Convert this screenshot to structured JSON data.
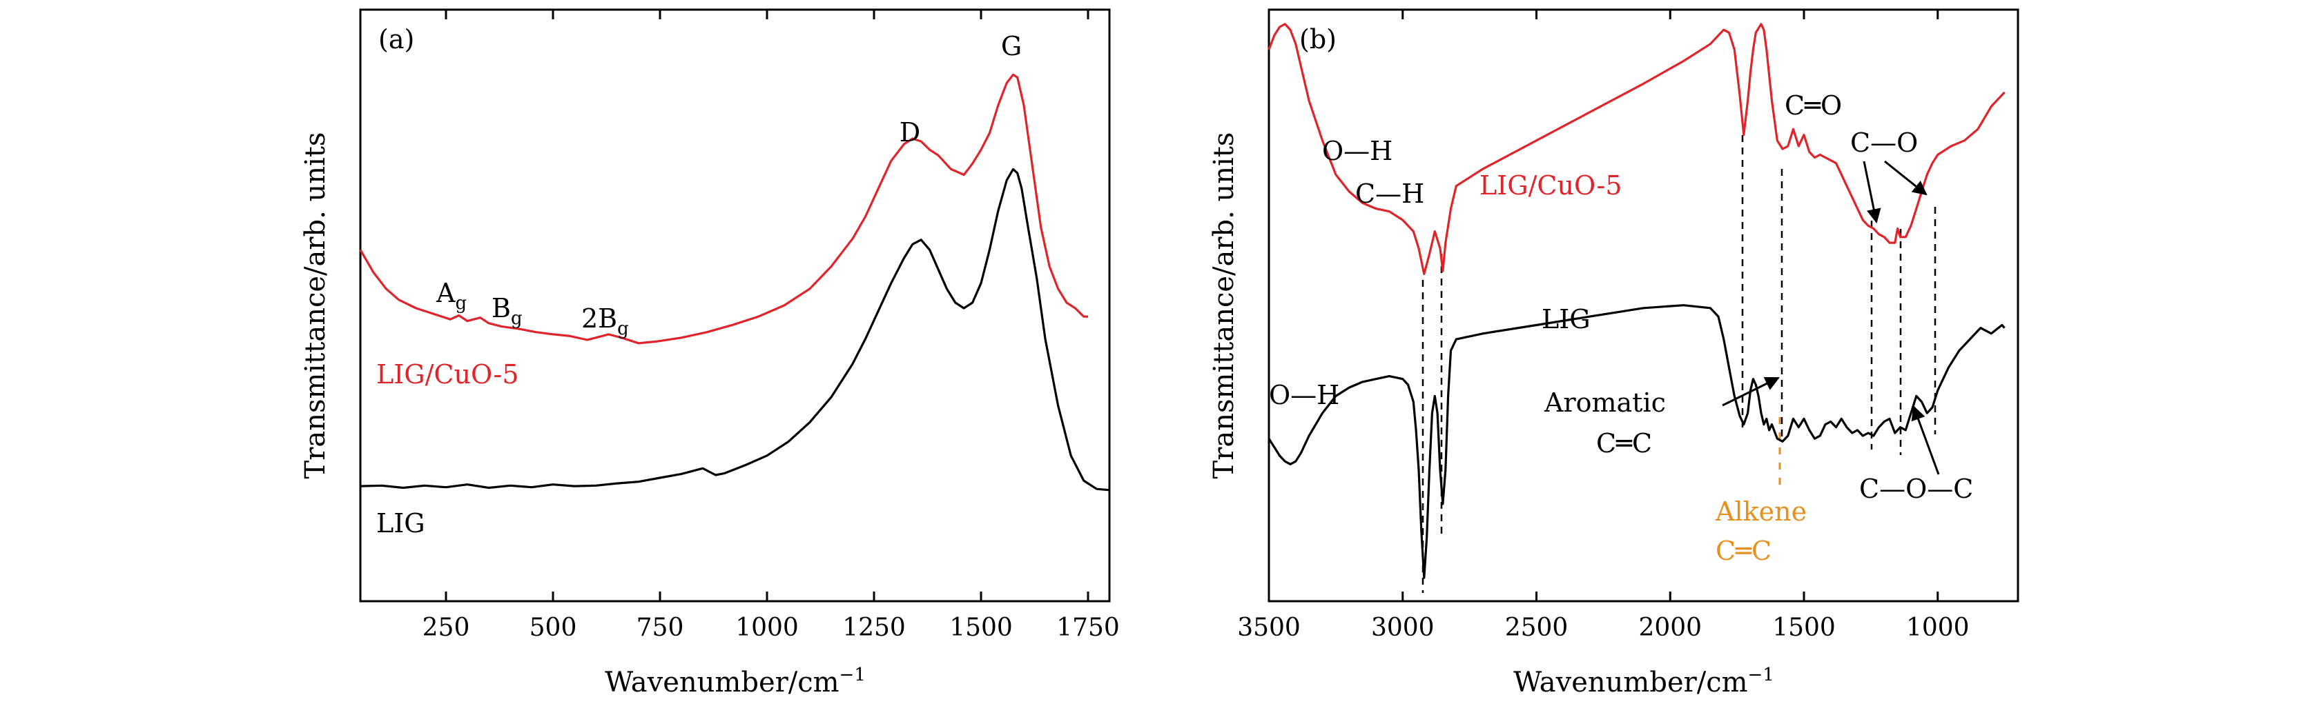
{
  "colors": {
    "red": "#e0242a",
    "black": "#000000",
    "orange": "#e8901c"
  },
  "chart_data": [
    {
      "type": "line",
      "panel": "(a)",
      "xlabel": "Wavenumber/cm",
      "xlabel_sup": "−1",
      "ylabel": "Transmittance/arb. units",
      "xlim": [
        50,
        1800
      ],
      "ylim": [
        0,
        1
      ],
      "xticks": [
        250,
        500,
        750,
        1000,
        1250,
        1500,
        1750
      ],
      "xtick_labels": [
        "250",
        "500",
        "750",
        "1000",
        "1250",
        "1500",
        "1750"
      ],
      "series": [
        {
          "name": "LIG/CuO-5",
          "color": "#e0242a",
          "x": [
            50,
            80,
            110,
            140,
            180,
            220,
            260,
            280,
            300,
            330,
            350,
            380,
            420,
            460,
            500,
            540,
            580,
            600,
            630,
            660,
            700,
            740,
            800,
            860,
            920,
            980,
            1040,
            1100,
            1150,
            1200,
            1230,
            1260,
            1290,
            1320,
            1340,
            1360,
            1380,
            1400,
            1430,
            1460,
            1480,
            1500,
            1520,
            1540,
            1560,
            1575,
            1585,
            1600,
            1620,
            1640,
            1660,
            1680,
            1700,
            1720,
            1740,
            1750
          ],
          "y": [
            0.6,
            0.56,
            0.53,
            0.51,
            0.495,
            0.485,
            0.475,
            0.482,
            0.472,
            0.478,
            0.468,
            0.462,
            0.458,
            0.452,
            0.448,
            0.445,
            0.438,
            0.442,
            0.448,
            0.442,
            0.432,
            0.435,
            0.442,
            0.452,
            0.465,
            0.48,
            0.5,
            0.53,
            0.57,
            0.62,
            0.66,
            0.71,
            0.76,
            0.79,
            0.8,
            0.795,
            0.78,
            0.77,
            0.745,
            0.735,
            0.755,
            0.78,
            0.81,
            0.86,
            0.9,
            0.915,
            0.91,
            0.86,
            0.75,
            0.64,
            0.57,
            0.53,
            0.505,
            0.495,
            0.48,
            0.48
          ]
        },
        {
          "name": "LIG",
          "color": "#000000",
          "x": [
            50,
            100,
            150,
            200,
            250,
            300,
            350,
            400,
            450,
            500,
            550,
            600,
            650,
            700,
            750,
            800,
            850,
            880,
            900,
            950,
            1000,
            1050,
            1100,
            1150,
            1200,
            1230,
            1260,
            1290,
            1320,
            1340,
            1360,
            1380,
            1400,
            1420,
            1440,
            1460,
            1480,
            1500,
            1520,
            1540,
            1560,
            1575,
            1585,
            1595,
            1610,
            1630,
            1650,
            1680,
            1710,
            1740,
            1770,
            1800
          ],
          "y": [
            0.175,
            0.176,
            0.172,
            0.176,
            0.173,
            0.178,
            0.172,
            0.176,
            0.173,
            0.178,
            0.175,
            0.176,
            0.18,
            0.183,
            0.19,
            0.197,
            0.207,
            0.195,
            0.198,
            0.213,
            0.23,
            0.255,
            0.29,
            0.335,
            0.395,
            0.44,
            0.49,
            0.54,
            0.585,
            0.61,
            0.618,
            0.6,
            0.565,
            0.53,
            0.505,
            0.495,
            0.505,
            0.54,
            0.6,
            0.67,
            0.725,
            0.745,
            0.738,
            0.71,
            0.64,
            0.55,
            0.44,
            0.32,
            0.23,
            0.185,
            0.17,
            0.168
          ]
        }
      ],
      "annotations": [
        {
          "text": "LIG/CuO-5",
          "color": "#e0242a"
        },
        {
          "text": "LIG",
          "color": "#000000"
        },
        {
          "text": "G"
        },
        {
          "text": "D"
        },
        {
          "text": "A",
          "sub": "g"
        },
        {
          "text": "B",
          "sub": "g"
        },
        {
          "text": "2B",
          "sub": "g"
        }
      ]
    },
    {
      "type": "line",
      "panel": "(b)",
      "xlabel": "Wavenumber/cm",
      "xlabel_sup": "−1",
      "ylabel": "Transmittance/arb. units",
      "xlim": [
        3500,
        700
      ],
      "ylim": [
        0,
        1
      ],
      "xticks": [
        3500,
        3000,
        2500,
        2000,
        1500,
        1000
      ],
      "xtick_labels": [
        "3500",
        "3000",
        "2500",
        "2000",
        "1500",
        "1000"
      ],
      "series": [
        {
          "name": "LIG/CuO-5",
          "color": "#e0242a",
          "x": [
            3500,
            3480,
            3460,
            3440,
            3420,
            3400,
            3380,
            3350,
            3300,
            3250,
            3200,
            3150,
            3100,
            3050,
            3000,
            2960,
            2940,
            2920,
            2900,
            2880,
            2860,
            2850,
            2840,
            2820,
            2800,
            2700,
            2500,
            2300,
            2100,
            1950,
            1850,
            1820,
            1800,
            1780,
            1760,
            1740,
            1725,
            1710,
            1700,
            1690,
            1680,
            1660,
            1650,
            1640,
            1620,
            1600,
            1580,
            1560,
            1540,
            1520,
            1500,
            1480,
            1460,
            1440,
            1420,
            1400,
            1380,
            1360,
            1340,
            1320,
            1300,
            1280,
            1260,
            1240,
            1220,
            1200,
            1180,
            1160,
            1150,
            1140,
            1120,
            1100,
            1080,
            1060,
            1040,
            1020,
            1000,
            950,
            900,
            850,
            800,
            760,
            750
          ],
          "y": [
            0.94,
            0.965,
            0.98,
            0.985,
            0.975,
            0.95,
            0.91,
            0.85,
            0.78,
            0.72,
            0.69,
            0.67,
            0.66,
            0.655,
            0.64,
            0.62,
            0.59,
            0.545,
            0.58,
            0.62,
            0.59,
            0.55,
            0.6,
            0.66,
            0.7,
            0.73,
            0.78,
            0.83,
            0.88,
            0.92,
            0.95,
            0.965,
            0.975,
            0.97,
            0.94,
            0.86,
            0.79,
            0.85,
            0.9,
            0.94,
            0.97,
            0.985,
            0.975,
            0.94,
            0.85,
            0.78,
            0.765,
            0.77,
            0.8,
            0.77,
            0.79,
            0.76,
            0.75,
            0.755,
            0.75,
            0.745,
            0.74,
            0.72,
            0.7,
            0.68,
            0.66,
            0.64,
            0.63,
            0.625,
            0.615,
            0.61,
            0.6,
            0.6,
            0.625,
            0.61,
            0.61,
            0.63,
            0.66,
            0.69,
            0.72,
            0.74,
            0.755,
            0.77,
            0.78,
            0.8,
            0.84,
            0.86,
            0.865
          ]
        },
        {
          "name": "LIG",
          "color": "#000000",
          "x": [
            3500,
            3480,
            3460,
            3440,
            3420,
            3400,
            3380,
            3350,
            3300,
            3250,
            3200,
            3150,
            3100,
            3050,
            3000,
            2980,
            2960,
            2950,
            2940,
            2930,
            2920,
            2910,
            2900,
            2890,
            2880,
            2870,
            2860,
            2850,
            2840,
            2830,
            2820,
            2800,
            2700,
            2500,
            2300,
            2100,
            1950,
            1850,
            1820,
            1800,
            1780,
            1760,
            1740,
            1725,
            1710,
            1700,
            1690,
            1680,
            1670,
            1660,
            1650,
            1640,
            1630,
            1620,
            1600,
            1580,
            1560,
            1540,
            1520,
            1500,
            1480,
            1460,
            1440,
            1420,
            1400,
            1380,
            1360,
            1340,
            1320,
            1300,
            1280,
            1260,
            1240,
            1220,
            1200,
            1180,
            1160,
            1140,
            1120,
            1100,
            1080,
            1060,
            1040,
            1020,
            1000,
            960,
            920,
            880,
            840,
            800,
            760,
            750
          ],
          "y": [
            0.255,
            0.24,
            0.225,
            0.215,
            0.21,
            0.215,
            0.23,
            0.26,
            0.3,
            0.33,
            0.345,
            0.355,
            0.36,
            0.365,
            0.36,
            0.35,
            0.32,
            0.27,
            0.2,
            0.09,
            0.01,
            0.08,
            0.2,
            0.3,
            0.33,
            0.3,
            0.2,
            0.14,
            0.2,
            0.33,
            0.41,
            0.43,
            0.44,
            0.455,
            0.47,
            0.485,
            0.49,
            0.485,
            0.47,
            0.43,
            0.38,
            0.33,
            0.295,
            0.28,
            0.3,
            0.34,
            0.36,
            0.35,
            0.33,
            0.3,
            0.28,
            0.29,
            0.27,
            0.28,
            0.255,
            0.25,
            0.26,
            0.29,
            0.275,
            0.29,
            0.27,
            0.255,
            0.26,
            0.28,
            0.285,
            0.275,
            0.29,
            0.275,
            0.265,
            0.27,
            0.26,
            0.265,
            0.26,
            0.275,
            0.285,
            0.29,
            0.265,
            0.275,
            0.27,
            0.3,
            0.33,
            0.32,
            0.3,
            0.31,
            0.34,
            0.38,
            0.41,
            0.43,
            0.45,
            0.44,
            0.455,
            0.45
          ]
        }
      ],
      "annotations": [
        {
          "text": "LIG/CuO-5",
          "color": "#e0242a"
        },
        {
          "text": "LIG",
          "color": "#000000"
        },
        {
          "text": "O—H"
        },
        {
          "text": "C—H"
        },
        {
          "text": "C═O"
        },
        {
          "text": "C—O"
        },
        {
          "text": "O—H"
        },
        {
          "text": "Aromatic"
        },
        {
          "text": "C═C"
        },
        {
          "text": "Alkene",
          "color": "#e8901c"
        },
        {
          "text": "C═C",
          "color": "#e8901c"
        },
        {
          "text": "C—O—C"
        }
      ],
      "guide_lines_at": [
        2920,
        2850,
        1725,
        1600,
        1260,
        1160,
        1030
      ]
    }
  ]
}
